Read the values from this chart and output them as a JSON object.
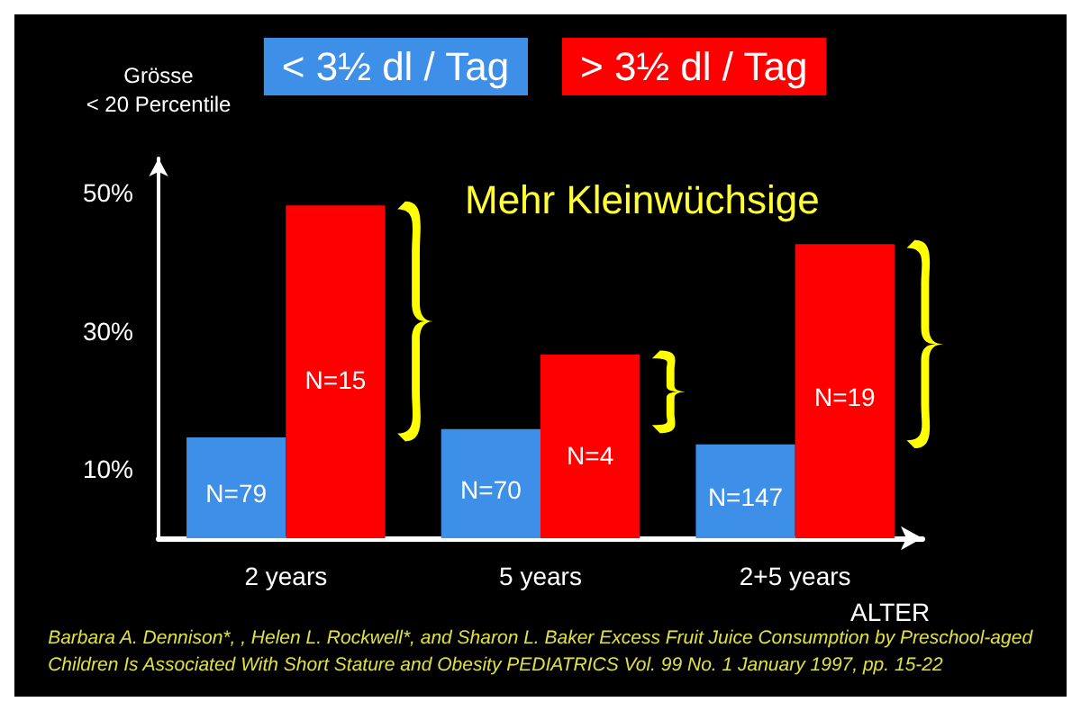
{
  "chart_data": {
    "type": "bar",
    "categories": [
      "2 years",
      "5 years",
      "2+5 years"
    ],
    "series": [
      {
        "name": "< 3½ dl / Tag",
        "color": "#3d8fe8",
        "values": [
          14.6,
          15.8,
          13.6
        ]
      },
      {
        "name": "> 3½ dl / Tag",
        "color": "#ff0000",
        "values": [
          48.2,
          26.6,
          42.6
        ]
      }
    ],
    "ylim": [
      0,
      55
    ],
    "yticks": [
      {
        "value": 10,
        "label": "10%"
      },
      {
        "value": 30,
        "label": "30%"
      },
      {
        "value": 50,
        "label": "50%"
      }
    ],
    "ylabel": "Grösse\n< 20 Percentile",
    "xlabel": "ALTER",
    "legend": "top",
    "grid": false,
    "annotations": [
      "Mehr Kleinwüchsige",
      "Barbara A. Dennison*, , Helen L. Rockwell*, and Sharon L. Baker Excess Fruit Juice Consumption by Preschool-aged\nChildren Is Associated With Short Stature and Obesity PEDIATRICS Vol. 99 No. 1 January 1997, pp. 15-22",
      {
        "text": "N=79",
        "x": "2 years",
        "y": 6.5
      },
      {
        "text": "N=15",
        "x": "2 years",
        "y": 23
      },
      {
        "text": "N=70",
        "x": "5 years",
        "y": 7
      },
      {
        "text": "N=4",
        "x": "5 years",
        "y": 12
      },
      {
        "text": "N=147",
        "x": "2+5 years",
        "y": 6
      },
      {
        "text": "N=19",
        "x": "2+5 years",
        "y": 20.5
      }
    ]
  }
}
